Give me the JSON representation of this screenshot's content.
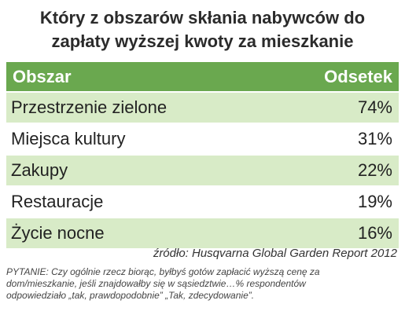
{
  "title_lines": [
    "Który z obszarów skłania nabywców do",
    "zapłaty wyższej kwoty za mieszkanie"
  ],
  "chart_data": {
    "type": "table",
    "columns": [
      "Obszar",
      "Odsetek"
    ],
    "rows": [
      {
        "label": "Przestrzenie zielone",
        "display": "74%",
        "value": 74
      },
      {
        "label": "Miejsca kultury",
        "display": "31%",
        "value": 31
      },
      {
        "label": "Zakupy",
        "display": "22%",
        "value": 22
      },
      {
        "label": "Restauracje",
        "display": "19%",
        "value": 19
      },
      {
        "label": "Życie nocne",
        "display": "16%",
        "value": 16
      }
    ]
  },
  "source": "źródło: Husqvarna Global Garden Report 2012",
  "note": "PYTANIE: Czy ogólnie rzecz biorąc, byłbyś gotów zapłacić wyższą cenę za dom/mieszkanie, jeśli znajdowałby się w sąsiedztwie…% respondentów odpowiedziało „tak, prawdopodobnie” „Tak, zdecydowanie”.",
  "colors": {
    "header_bg": "#6aa84f",
    "header_text": "#ffffff",
    "stripe": "#d8ebc7"
  }
}
